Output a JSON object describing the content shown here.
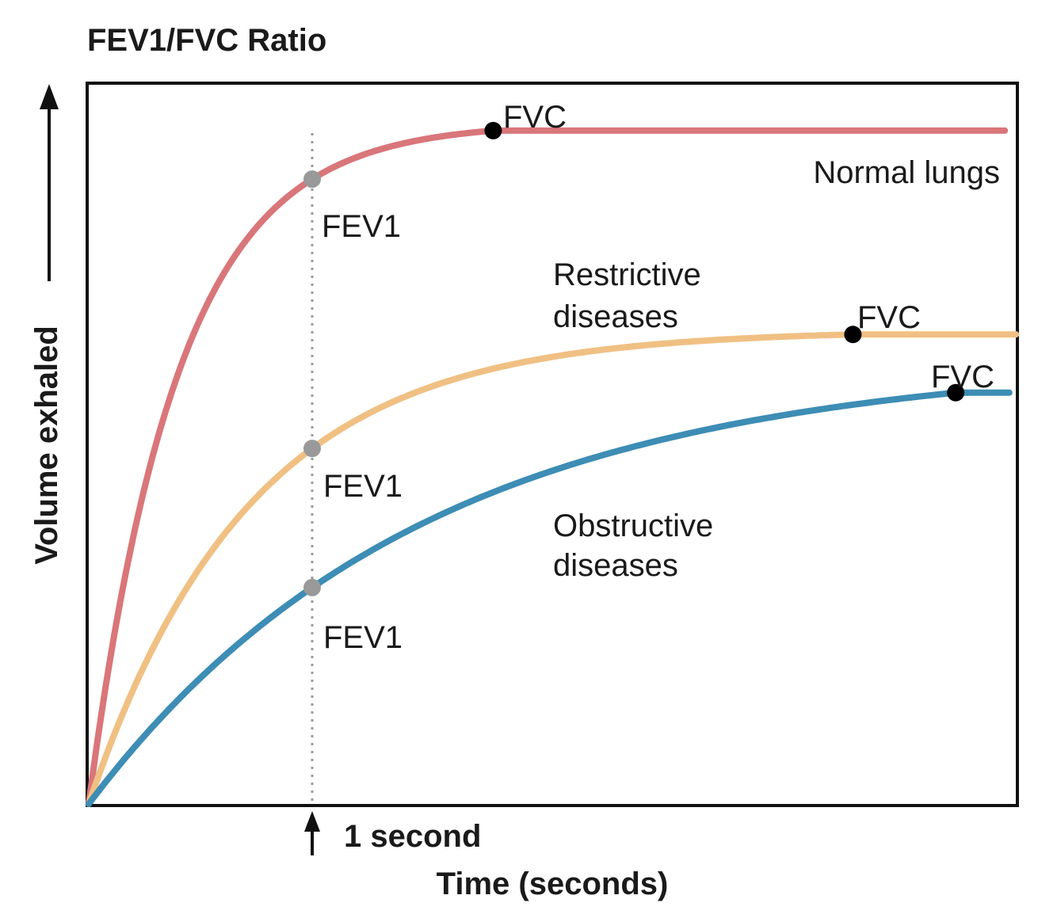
{
  "chart_data": {
    "type": "line",
    "title": "FEV1/FVC Ratio",
    "xlabel": "Time (seconds)",
    "ylabel": "Volume exhaled",
    "xlim": [
      0,
      4.15
    ],
    "ylim": [
      0,
      1.0
    ],
    "grid": false,
    "marker": {
      "x": 1,
      "label": "1 second"
    },
    "series": [
      {
        "name": "Normal lungs",
        "label": "Normal lungs",
        "color": "#d9767a",
        "fvc": 0.925,
        "fvc_time": 1.81,
        "fev1": 0.845,
        "tau": 0.4,
        "end_time": 4.1,
        "fev1_label": "FEV1",
        "fvc_label": "FVC"
      },
      {
        "name": "Restrictive diseases",
        "label_lines": [
          "Restrictive",
          "diseases"
        ],
        "color": "#f0c083",
        "fvc": 0.645,
        "fvc_time": 3.42,
        "fev1": 0.483,
        "tau": 0.72,
        "end_time": 4.15,
        "fev1_label": "FEV1",
        "fvc_label": "FVC"
      },
      {
        "name": "Obstructive diseases",
        "label_lines": [
          "Obstructive",
          "diseases"
        ],
        "color": "#3d8db5",
        "fvc": 0.565,
        "fvc_time": 3.88,
        "fev1": 0.27,
        "tau": 1.5,
        "end_time": 4.12,
        "fev1_label": "FEV1",
        "fvc_label": "FVC"
      }
    ]
  }
}
